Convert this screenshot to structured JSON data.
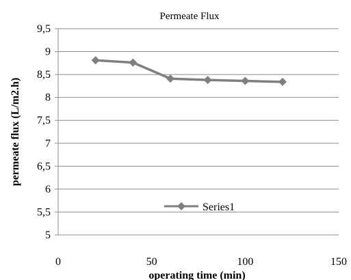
{
  "chart_data": {
    "type": "line",
    "title": "Permeate Flux",
    "xlabel": "operating time (min)",
    "ylabel": "permeate flux (L/m2.h)",
    "xlim": [
      0,
      150
    ],
    "ylim": [
      5,
      9.5
    ],
    "x_ticks": [
      0,
      50,
      100,
      150
    ],
    "x_tick_labels": [
      "0",
      "50",
      "100",
      "150"
    ],
    "y_ticks": [
      5,
      5.5,
      6,
      6.5,
      7,
      7.5,
      8,
      8.5,
      9,
      9.5
    ],
    "y_tick_labels": [
      "5",
      "5,5",
      "6",
      "6,5",
      "7",
      "7,5",
      "8",
      "8,5",
      "9",
      "9,5"
    ],
    "grid": "horizontal",
    "legend": "center",
    "series": [
      {
        "name": "Series1",
        "color": "#7f7f7f",
        "marker": "diamond",
        "x": [
          20,
          40,
          60,
          80,
          100,
          120
        ],
        "y": [
          8.81,
          8.76,
          8.41,
          8.38,
          8.36,
          8.34
        ]
      }
    ]
  }
}
